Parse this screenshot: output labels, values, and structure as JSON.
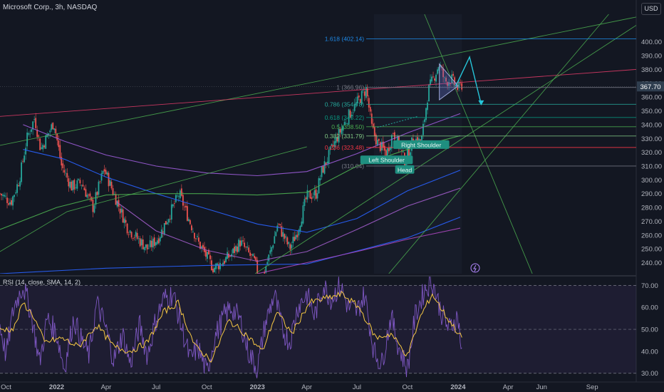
{
  "header": {
    "title": "Microsoft Corp., 3h, NASDAQ",
    "currency": "USD"
  },
  "rsi": {
    "label": "RSI (14, close, SMA, 14, 2)"
  },
  "colors": {
    "bg": "#131722",
    "price_label": "#2f3e4f",
    "candle_up": "#26a69a",
    "candle_down": "#ef5350",
    "rsi_line": "#7e57c2",
    "rsi_sma": "#f7c843",
    "fib": "#1e88e5",
    "pattern": "#26a69a"
  },
  "chart_data": [
    {
      "type": "candlestick",
      "title": "Microsoft Corp., 3h, NASDAQ",
      "xlabel": "",
      "ylabel": "",
      "x_tick_labels": [
        "Oct",
        "2022",
        "Apr",
        "Jul",
        "Oct",
        "2023",
        "Apr",
        "Jul",
        "Oct",
        "2024",
        "Apr",
        "Jun",
        "Sep"
      ],
      "x_tick_times": [
        "2021-10-01",
        "2022-01-01",
        "2022-04-01",
        "2022-07-01",
        "2022-10-01",
        "2023-01-01",
        "2023-04-01",
        "2023-07-01",
        "2023-10-01",
        "2024-01-01",
        "2024-04-01",
        "2024-06-01",
        "2024-09-01"
      ],
      "y_ticks": [
        240,
        250,
        260,
        270,
        280,
        290,
        300,
        310,
        320,
        330,
        340,
        350,
        360,
        370,
        380,
        390,
        400
      ],
      "ylim": [
        232,
        420
      ],
      "last_price": "367.70",
      "price_path": [
        [
          "2021-09-20",
          290
        ],
        [
          "2021-10-10",
          284
        ],
        [
          "2021-10-25",
          300
        ],
        [
          "2021-11-08",
          330
        ],
        [
          "2021-11-22",
          345
        ],
        [
          "2021-12-03",
          322
        ],
        [
          "2021-12-27",
          342
        ],
        [
          "2022-01-10",
          310
        ],
        [
          "2022-01-28",
          295
        ],
        [
          "2022-02-15",
          298
        ],
        [
          "2022-03-08",
          280
        ],
        [
          "2022-03-28",
          308
        ],
        [
          "2022-04-20",
          285
        ],
        [
          "2022-05-10",
          265
        ],
        [
          "2022-06-15",
          250
        ],
        [
          "2022-07-05",
          258
        ],
        [
          "2022-08-12",
          290
        ],
        [
          "2022-08-25",
          276
        ],
        [
          "2022-09-15",
          255
        ],
        [
          "2022-10-13",
          236
        ],
        [
          "2022-10-28",
          240
        ],
        [
          "2022-11-15",
          246
        ],
        [
          "2022-12-01",
          255
        ],
        [
          "2022-12-28",
          240
        ],
        [
          "2023-01-06",
          224
        ],
        [
          "2023-01-25",
          248
        ],
        [
          "2023-02-07",
          268
        ],
        [
          "2023-03-01",
          250
        ],
        [
          "2023-03-15",
          263
        ],
        [
          "2023-04-01",
          288
        ],
        [
          "2023-04-18",
          290
        ],
        [
          "2023-04-28",
          306
        ],
        [
          "2023-05-25",
          330
        ],
        [
          "2023-06-15",
          346
        ],
        [
          "2023-07-18",
          366
        ],
        [
          "2023-07-28",
          338
        ],
        [
          "2023-08-07",
          327
        ],
        [
          "2023-08-24",
          319
        ],
        [
          "2023-09-05",
          335
        ],
        [
          "2023-09-20",
          320
        ],
        [
          "2023-09-26",
          313
        ],
        [
          "2023-10-12",
          330
        ],
        [
          "2023-10-26",
          327
        ],
        [
          "2023-11-08",
          365
        ],
        [
          "2023-11-28",
          384
        ],
        [
          "2023-12-08",
          371
        ],
        [
          "2023-12-20",
          373
        ],
        [
          "2024-01-01",
          366
        ],
        [
          "2024-01-08",
          369
        ]
      ],
      "moving_averages": [
        {
          "color": "#9c5cd8",
          "points": [
            [
              "2021-11-01",
              340
            ],
            [
              "2022-01-15",
              328
            ],
            [
              "2022-04-01",
              318
            ],
            [
              "2022-07-01",
              310
            ],
            [
              "2022-10-01",
              305
            ],
            [
              "2023-01-01",
              303
            ],
            [
              "2023-04-01",
              306
            ],
            [
              "2023-07-01",
              319
            ],
            [
              "2023-10-01",
              334
            ],
            [
              "2024-01-05",
              348
            ]
          ]
        },
        {
          "color": "#2962ff",
          "points": [
            [
              "2021-11-01",
              322
            ],
            [
              "2022-01-15",
              315
            ],
            [
              "2022-04-01",
              302
            ],
            [
              "2022-07-01",
              290
            ],
            [
              "2022-10-01",
              279
            ],
            [
              "2023-01-01",
              268
            ],
            [
              "2023-04-01",
              262
            ],
            [
              "2023-07-01",
              272
            ],
            [
              "2023-10-01",
              292
            ],
            [
              "2024-01-05",
              307
            ]
          ]
        },
        {
          "color": "#a05cc9",
          "points": [
            [
              "2022-04-20",
              284
            ],
            [
              "2022-07-01",
              263
            ],
            [
              "2022-10-01",
              249
            ],
            [
              "2023-01-01",
              241
            ],
            [
              "2023-04-01",
              248
            ],
            [
              "2023-07-01",
              264
            ],
            [
              "2023-10-01",
              281
            ],
            [
              "2024-01-05",
              294
            ]
          ]
        },
        {
          "color": "#4caf50",
          "points": [
            [
              "2021-09-20",
              264
            ],
            [
              "2022-01-01",
              280
            ],
            [
              "2022-04-01",
              289
            ],
            [
              "2022-07-01",
              290
            ],
            [
              "2022-10-01",
              290
            ],
            [
              "2023-01-01",
              289
            ],
            [
              "2023-04-01",
              291
            ],
            [
              "2023-07-01",
              310
            ],
            [
              "2023-10-01",
              322
            ],
            [
              "2024-01-05",
              332
            ]
          ]
        },
        {
          "color": "#2962ff",
          "points": [
            [
              "2021-09-20",
              232
            ],
            [
              "2022-04-01",
              236
            ],
            [
              "2022-10-01",
              238
            ],
            [
              "2023-04-01",
              239
            ],
            [
              "2023-10-01",
              258
            ],
            [
              "2024-01-05",
              273
            ]
          ]
        },
        {
          "color": "#ab47bc",
          "points": [
            [
              "2023-01-01",
              232
            ],
            [
              "2023-04-01",
              240
            ],
            [
              "2023-07-01",
              248
            ],
            [
              "2023-10-01",
              257
            ],
            [
              "2024-01-05",
              265
            ]
          ]
        }
      ],
      "trendlines": [
        {
          "color": "#4caf50",
          "points": [
            [
              "2021-09-20",
              325
            ],
            [
              "2024-11-20",
              418
            ]
          ]
        },
        {
          "color": "#e63c6a",
          "points": [
            [
              "2021-09-20",
              346
            ],
            [
              "2024-11-20",
              380
            ]
          ]
        },
        {
          "color": "#4caf50",
          "points": [
            [
              "2021-09-20",
              248
            ],
            [
              "2022-01-20",
              277
            ],
            [
              "2023-04-01",
              324
            ]
          ]
        },
        {
          "color": "#4caf50",
          "points": [
            [
              "2022-12-28",
              232
            ],
            [
              "2024-11-20",
              412
            ]
          ]
        },
        {
          "color": "#4caf50",
          "points": [
            [
              "2023-11-01",
              420
            ],
            [
              "2024-05-15",
              232
            ]
          ]
        },
        {
          "color": "#4caf50",
          "points": [
            [
              "2023-08-28",
              232
            ],
            [
              "2024-10-01",
              420
            ]
          ]
        }
      ],
      "fibonacci": [
        {
          "label": "1.618 (402.14)",
          "level": 402.14,
          "color": "#1e88e5"
        },
        {
          "label": "1 (366.96)",
          "level": 366.96,
          "color": "#787b86"
        },
        {
          "label": "0.786 (354.78)",
          "level": 354.78,
          "color": "#26a69a"
        },
        {
          "label": "0.618 (345.22)",
          "level": 345.22,
          "color": "#089981"
        },
        {
          "label": "0.5 (338.50)",
          "level": 338.5,
          "color": "#4caf50"
        },
        {
          "label": "0.382 (331.79)",
          "level": 331.79,
          "color": "#81c784"
        },
        {
          "label": "0.236 (323.48)",
          "level": 323.48,
          "color": "#f23645"
        },
        {
          "label": "(310.04)",
          "level": 310.04,
          "color": "#787b86"
        }
      ],
      "annotations": [
        {
          "text": "Left Shoulder",
          "x": "2023-08-24",
          "y": 314
        },
        {
          "text": "Head",
          "x": "2023-09-26",
          "y": 307
        },
        {
          "text": "Right Shoulder",
          "x": "2023-10-26",
          "y": 325
        }
      ],
      "projection": [
        [
          "2023-12-28",
          368
        ],
        [
          "2024-01-22",
          389
        ],
        [
          "2024-02-12",
          355
        ]
      ],
      "neckline": [
        [
          "2023-08-07",
          338
        ],
        [
          "2023-10-20",
          346
        ]
      ]
    },
    {
      "type": "line",
      "title": "RSI (14, close, SMA, 14, 2)",
      "xlabel": "",
      "ylabel": "",
      "ylim": [
        27,
        74
      ],
      "y_ticks": [
        30,
        40,
        50,
        60,
        70
      ],
      "bands": [
        30,
        50,
        70
      ],
      "series": [
        {
          "name": "RSI",
          "color": "#7e57c2",
          "points": [
            [
              "2021-09-20",
              52
            ],
            [
              "2021-10-01",
              38
            ],
            [
              "2021-10-15",
              60
            ],
            [
              "2021-11-01",
              70
            ],
            [
              "2021-11-15",
              58
            ],
            [
              "2021-12-01",
              35
            ],
            [
              "2021-12-15",
              55
            ],
            [
              "2022-01-01",
              48
            ],
            [
              "2022-01-15",
              32
            ],
            [
              "2022-02-01",
              55
            ],
            [
              "2022-02-15",
              45
            ],
            [
              "2022-03-01",
              38
            ],
            [
              "2022-03-15",
              62
            ],
            [
              "2022-04-01",
              50
            ],
            [
              "2022-04-15",
              36
            ],
            [
              "2022-05-01",
              48
            ],
            [
              "2022-05-15",
              34
            ],
            [
              "2022-06-01",
              52
            ],
            [
              "2022-06-15",
              38
            ],
            [
              "2022-07-01",
              55
            ],
            [
              "2022-07-15",
              64
            ],
            [
              "2022-08-01",
              66
            ],
            [
              "2022-08-15",
              52
            ],
            [
              "2022-09-01",
              36
            ],
            [
              "2022-09-15",
              42
            ],
            [
              "2022-10-01",
              30
            ],
            [
              "2022-10-15",
              46
            ],
            [
              "2022-11-01",
              56
            ],
            [
              "2022-11-15",
              60
            ],
            [
              "2022-12-01",
              54
            ],
            [
              "2022-12-15",
              40
            ],
            [
              "2023-01-01",
              32
            ],
            [
              "2023-01-15",
              52
            ],
            [
              "2023-02-01",
              66
            ],
            [
              "2023-02-15",
              50
            ],
            [
              "2023-03-01",
              44
            ],
            [
              "2023-03-15",
              60
            ],
            [
              "2023-04-01",
              66
            ],
            [
              "2023-04-15",
              56
            ],
            [
              "2023-05-01",
              70
            ],
            [
              "2023-05-15",
              64
            ],
            [
              "2023-06-01",
              70
            ],
            [
              "2023-06-15",
              60
            ],
            [
              "2023-07-01",
              58
            ],
            [
              "2023-07-15",
              66
            ],
            [
              "2023-08-01",
              40
            ],
            [
              "2023-08-15",
              34
            ],
            [
              "2023-09-01",
              56
            ],
            [
              "2023-09-15",
              42
            ],
            [
              "2023-10-01",
              32
            ],
            [
              "2023-10-15",
              56
            ],
            [
              "2023-11-01",
              68
            ],
            [
              "2023-11-15",
              72
            ],
            [
              "2023-12-01",
              58
            ],
            [
              "2023-12-15",
              50
            ],
            [
              "2024-01-01",
              56
            ],
            [
              "2024-01-08",
              38
            ]
          ]
        },
        {
          "name": "SMA",
          "color": "#f7c843",
          "points": [
            [
              "2021-09-20",
              50
            ],
            [
              "2021-10-15",
              50
            ],
            [
              "2021-11-01",
              62
            ],
            [
              "2021-11-20",
              56
            ],
            [
              "2021-12-10",
              44
            ],
            [
              "2022-01-10",
              46
            ],
            [
              "2022-02-10",
              42
            ],
            [
              "2022-03-15",
              52
            ],
            [
              "2022-04-15",
              42
            ],
            [
              "2022-05-15",
              40
            ],
            [
              "2022-06-15",
              44
            ],
            [
              "2022-07-15",
              58
            ],
            [
              "2022-08-10",
              62
            ],
            [
              "2022-09-10",
              42
            ],
            [
              "2022-10-10",
              36
            ],
            [
              "2022-11-10",
              54
            ],
            [
              "2022-12-10",
              48
            ],
            [
              "2023-01-10",
              40
            ],
            [
              "2023-02-05",
              58
            ],
            [
              "2023-03-05",
              48
            ],
            [
              "2023-04-05",
              62
            ],
            [
              "2023-05-05",
              64
            ],
            [
              "2023-06-05",
              66
            ],
            [
              "2023-07-05",
              60
            ],
            [
              "2023-08-05",
              46
            ],
            [
              "2023-09-01",
              48
            ],
            [
              "2023-10-01",
              38
            ],
            [
              "2023-10-25",
              56
            ],
            [
              "2023-11-15",
              66
            ],
            [
              "2023-12-10",
              56
            ],
            [
              "2024-01-08",
              46
            ]
          ]
        }
      ]
    }
  ]
}
